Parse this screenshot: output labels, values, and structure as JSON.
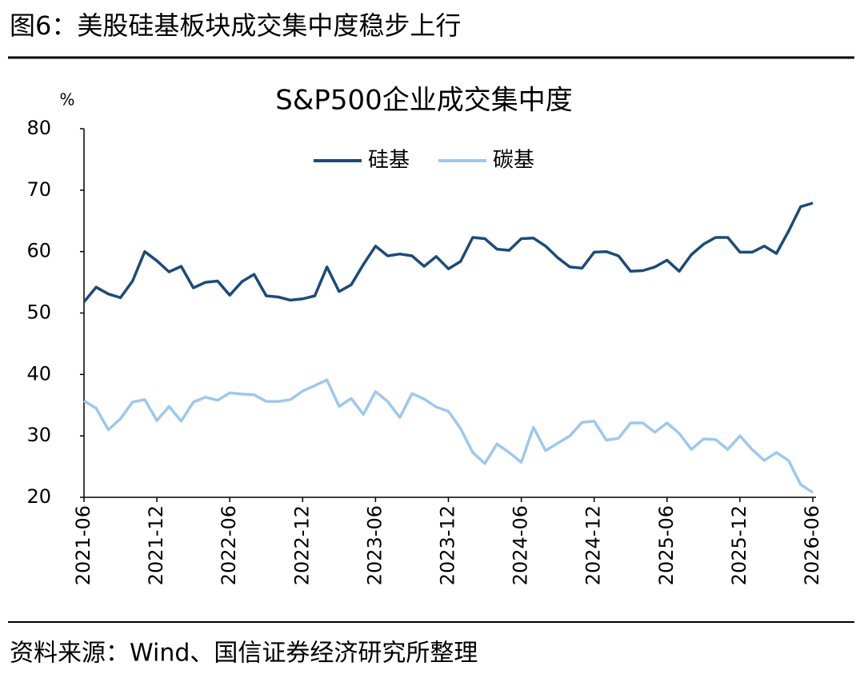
{
  "header": {
    "title": "图6：美股硅基板块成交集中度稳步上行"
  },
  "footer": {
    "source": "资料来源：Wind、国信证券经济研究所整理"
  },
  "chart_data": {
    "type": "line",
    "title": "S&P500企业成交集中度",
    "y_label": "%",
    "categories": [
      "2021-06",
      null,
      null,
      null,
      null,
      null,
      "2021-12",
      null,
      null,
      null,
      null,
      null,
      "2022-06",
      null,
      null,
      null,
      null,
      null,
      "2022-12",
      null,
      null,
      null,
      null,
      null,
      "2023-06",
      null,
      null,
      null,
      null,
      null,
      "2023-12",
      null,
      null,
      null,
      null,
      null,
      "2024-06",
      null,
      null,
      null,
      null,
      null,
      "2024-12",
      null,
      null,
      null,
      null,
      null,
      "2025-06",
      null,
      null,
      null,
      null,
      null,
      "2025-12",
      null,
      null,
      null,
      null,
      null,
      "2026-06"
    ],
    "series": [
      {
        "name": "硅基",
        "color": "#1b4b7a",
        "values": [
          51.8,
          54.2,
          53.1,
          52.5,
          55.2,
          60.0,
          58.5,
          56.7,
          57.6,
          54.1,
          55.0,
          55.2,
          52.9,
          55.1,
          56.3,
          52.8,
          52.6,
          52.1,
          52.3,
          52.8,
          57.5,
          53.5,
          54.6,
          57.9,
          60.9,
          59.3,
          59.6,
          59.3,
          57.6,
          59.2,
          57.2,
          58.4,
          62.3,
          62.1,
          60.4,
          60.2,
          62.1,
          62.2,
          60.9,
          59.0,
          57.5,
          57.3,
          59.9,
          60.0,
          59.3,
          56.8,
          56.9,
          57.5,
          58.6,
          56.8,
          59.5,
          61.2,
          62.3,
          62.3,
          59.9,
          59.9,
          60.9,
          59.7,
          63.3,
          67.3,
          67.9
        ]
      },
      {
        "name": "碳基",
        "color": "#9dc8ee",
        "values": [
          35.7,
          34.5,
          31.0,
          32.8,
          35.5,
          35.9,
          32.5,
          34.8,
          32.4,
          35.5,
          36.3,
          35.8,
          37.0,
          36.8,
          36.7,
          35.6,
          35.6,
          35.9,
          37.3,
          38.2,
          39.1,
          34.8,
          36.1,
          33.5,
          37.2,
          35.6,
          33.0,
          36.9,
          36.0,
          34.7,
          34.0,
          31.2,
          27.3,
          25.5,
          28.7,
          27.3,
          25.7,
          31.4,
          27.6,
          28.8,
          30.0,
          32.2,
          32.4,
          29.3,
          29.6,
          32.1,
          32.1,
          30.6,
          32.1,
          30.4,
          27.8,
          29.5,
          29.4,
          27.8,
          30.0,
          27.8,
          26.0,
          27.3,
          26.0,
          22.1,
          20.8
        ]
      }
    ],
    "ylim": [
      20,
      80
    ],
    "yticks": [
      20,
      30,
      40,
      50,
      60,
      70,
      80
    ],
    "legend": "top"
  }
}
